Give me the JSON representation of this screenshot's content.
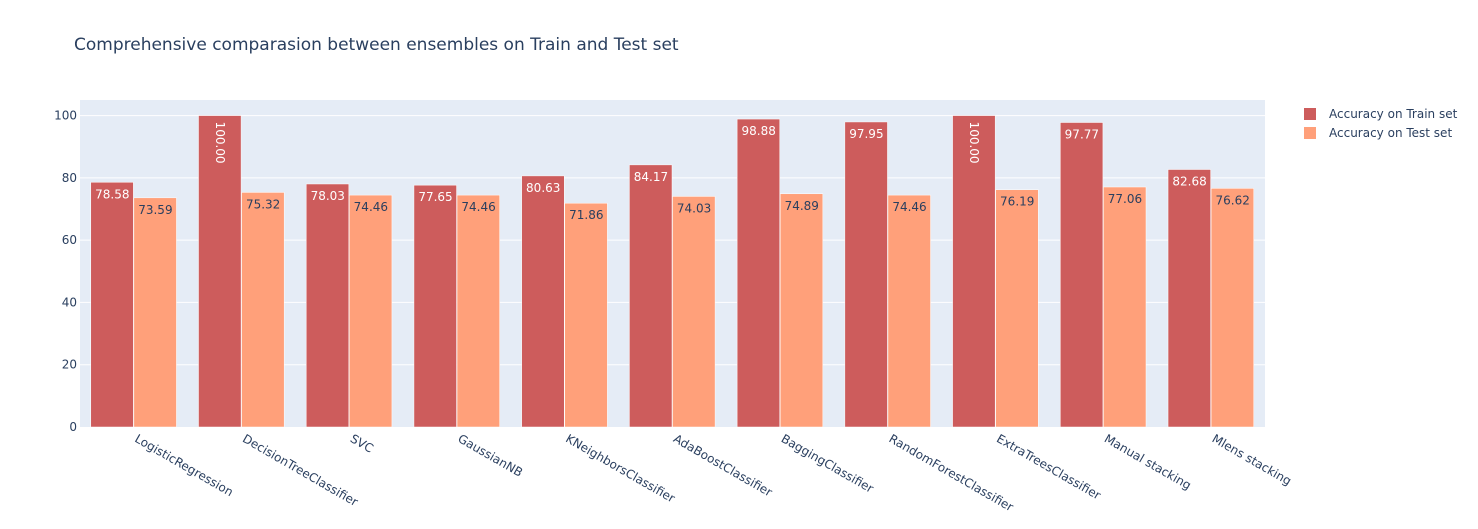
{
  "chart_data": {
    "type": "bar",
    "title": "Comprehensive comparasion between ensembles on Train and Test set",
    "xlabel": "",
    "ylabel": "",
    "ylim": [
      0,
      105
    ],
    "yticks": [
      0,
      20,
      40,
      60,
      80,
      100
    ],
    "grid": true,
    "legend_position": "top-right",
    "categories": [
      "LogisticRegression",
      "DecisionTreeClassifier",
      "SVC",
      "GaussianNB",
      "KNeighborsClassifier",
      "AdaBoostClassifier",
      "BaggingClassifier",
      "RandomForestClassifier",
      "ExtraTreesClassifier",
      "Manual stacking",
      "Mlens stacking"
    ],
    "series": [
      {
        "name": "Accuracy on Train set",
        "color": "#cd5c5c",
        "label_color": "#ffffff",
        "values": [
          78.58,
          100.0,
          78.03,
          77.65,
          80.63,
          84.17,
          98.88,
          97.95,
          100.0,
          97.77,
          82.68
        ],
        "labels": [
          "78.58",
          "100.00",
          "78.03",
          "77.65",
          "80.63",
          "84.17",
          "98.88",
          "97.95",
          "100.00",
          "97.77",
          "82.68"
        ]
      },
      {
        "name": "Accuracy on Test set",
        "color": "#ffa07a",
        "label_color": "#2a3f5f",
        "values": [
          73.59,
          75.32,
          74.46,
          74.46,
          71.86,
          74.03,
          74.89,
          74.46,
          76.19,
          77.06,
          76.62
        ],
        "labels": [
          "73.59",
          "75.32",
          "74.46",
          "74.46",
          "71.86",
          "74.03",
          "74.89",
          "74.46",
          "76.19",
          "77.06",
          "76.62"
        ]
      }
    ],
    "colors": {
      "plot_background": "#e5ecf6",
      "grid": "#ffffff",
      "text": "#2a3f5f"
    }
  }
}
